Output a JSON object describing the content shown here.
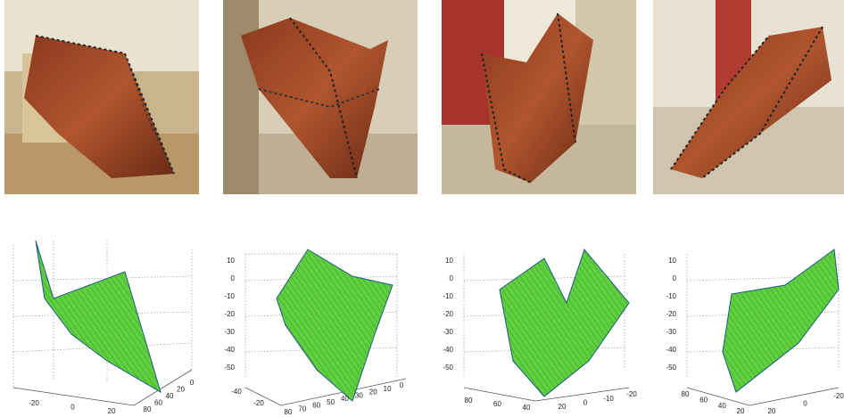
{
  "plots": [
    {
      "axis_a": [
        "-20",
        "0",
        "20"
      ],
      "axis_b": [
        "80",
        "60",
        "40",
        "20",
        "0"
      ]
    },
    {
      "z_ticks": [
        "10",
        "0",
        "-10",
        "-20",
        "-30",
        "-40",
        "-50"
      ],
      "axis_a": [
        "-40",
        "-20"
      ],
      "axis_b": [
        "80",
        "70",
        "60",
        "50",
        "40",
        "30",
        "20",
        "10",
        "0"
      ]
    },
    {
      "z_ticks": [
        "10",
        "0",
        "-10",
        "-20",
        "-30",
        "-40",
        "-50"
      ],
      "axis_a": [
        "80",
        "60",
        "40"
      ],
      "axis_b": [
        "20",
        "0",
        "-10",
        "-20"
      ]
    },
    {
      "z_ticks": [
        "10",
        "0",
        "-10",
        "-20",
        "-30",
        "-40",
        "-50"
      ],
      "axis_a": [
        "80",
        "60",
        "40",
        "20"
      ],
      "axis_b": [
        "20",
        "0",
        "-20"
      ]
    }
  ]
}
